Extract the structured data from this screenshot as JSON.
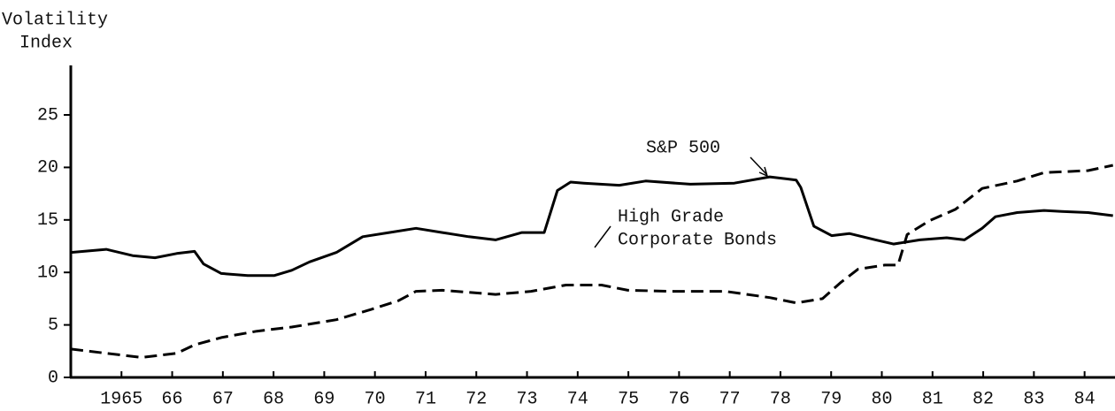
{
  "chart_data": {
    "type": "line",
    "ylabel": [
      "Volatility",
      "Index"
    ],
    "xlim": [
      1964,
      1984.6
    ],
    "ylim": [
      0,
      25
    ],
    "yticks": [
      0,
      5,
      10,
      15,
      20,
      25
    ],
    "xticks": [
      1965,
      {
        "value": 1966,
        "label": "66"
      },
      {
        "value": 1967,
        "label": "67"
      },
      {
        "value": 1968,
        "label": "68"
      },
      {
        "value": 1969,
        "label": "69"
      },
      {
        "value": 1970,
        "label": "70"
      },
      {
        "value": 1971,
        "label": "71"
      },
      {
        "value": 1972,
        "label": "72"
      },
      {
        "value": 1973,
        "label": "73"
      },
      {
        "value": 1974,
        "label": "74"
      },
      {
        "value": 1975,
        "label": "75"
      },
      {
        "value": 1976,
        "label": "76"
      },
      {
        "value": 1977,
        "label": "77"
      },
      {
        "value": 1978,
        "label": "78"
      },
      {
        "value": 1979,
        "label": "79"
      },
      {
        "value": 1980,
        "label": "80"
      },
      {
        "value": 1981,
        "label": "81"
      },
      {
        "value": 1982,
        "label": "82"
      },
      {
        "value": 1983,
        "label": "83"
      },
      {
        "value": 1984,
        "label": "84"
      }
    ],
    "grid": false,
    "series": [
      {
        "name": "S&P 500",
        "color": "#000000",
        "line_style": "solid",
        "x": [
          1964.0,
          1964.7,
          1965.22,
          1965.66,
          1966.09,
          1966.44,
          1966.62,
          1966.97,
          1967.49,
          1968.01,
          1968.36,
          1968.71,
          1969.24,
          1969.76,
          1970.28,
          1970.81,
          1971.33,
          1971.85,
          1972.38,
          1972.9,
          1973.34,
          1973.6,
          1973.86,
          1974.12,
          1974.82,
          1975.34,
          1976.22,
          1977.09,
          1977.79,
          1978.31,
          1978.4,
          1978.66,
          1979.01,
          1979.36,
          1979.88,
          1980.23,
          1980.75,
          1981.28,
          1981.63,
          1981.98,
          1982.24,
          1982.67,
          1983.2,
          1983.55,
          1984.07,
          1984.56
        ],
        "values": [
          11.9,
          12.2,
          11.6,
          11.4,
          11.8,
          12.0,
          10.8,
          9.9,
          9.7,
          9.7,
          10.2,
          11.0,
          11.9,
          13.4,
          13.8,
          14.2,
          13.8,
          13.4,
          13.1,
          13.8,
          13.8,
          17.8,
          18.6,
          18.5,
          18.3,
          18.7,
          18.4,
          18.5,
          19.1,
          18.8,
          18.1,
          14.4,
          13.5,
          13.7,
          13.1,
          12.7,
          13.1,
          13.3,
          13.1,
          14.2,
          15.3,
          15.7,
          15.9,
          15.8,
          15.7,
          15.4
        ]
      },
      {
        "name": [
          "High Grade",
          "Corporate Bonds"
        ],
        "color": "#000000",
        "line_style": "dashed",
        "x": [
          1964.0,
          1964.7,
          1965.4,
          1966.09,
          1966.44,
          1966.97,
          1967.67,
          1968.36,
          1969.24,
          1969.94,
          1970.46,
          1970.81,
          1971.33,
          1972.38,
          1973.08,
          1973.77,
          1974.47,
          1974.99,
          1975.86,
          1976.91,
          1977.79,
          1978.31,
          1978.83,
          1979.18,
          1979.53,
          1980.06,
          1980.32,
          1980.5,
          1980.93,
          1981.45,
          1981.98,
          1982.67,
          1983.2,
          1984.07,
          1984.56
        ],
        "values": [
          2.7,
          2.3,
          1.9,
          2.3,
          3.1,
          3.8,
          4.4,
          4.8,
          5.5,
          6.5,
          7.3,
          8.2,
          8.3,
          7.9,
          8.2,
          8.8,
          8.8,
          8.3,
          8.2,
          8.2,
          7.6,
          7.1,
          7.5,
          9.0,
          10.3,
          10.7,
          10.7,
          13.6,
          14.9,
          16.0,
          18.0,
          18.7,
          19.5,
          19.7,
          20.2
        ]
      }
    ]
  }
}
